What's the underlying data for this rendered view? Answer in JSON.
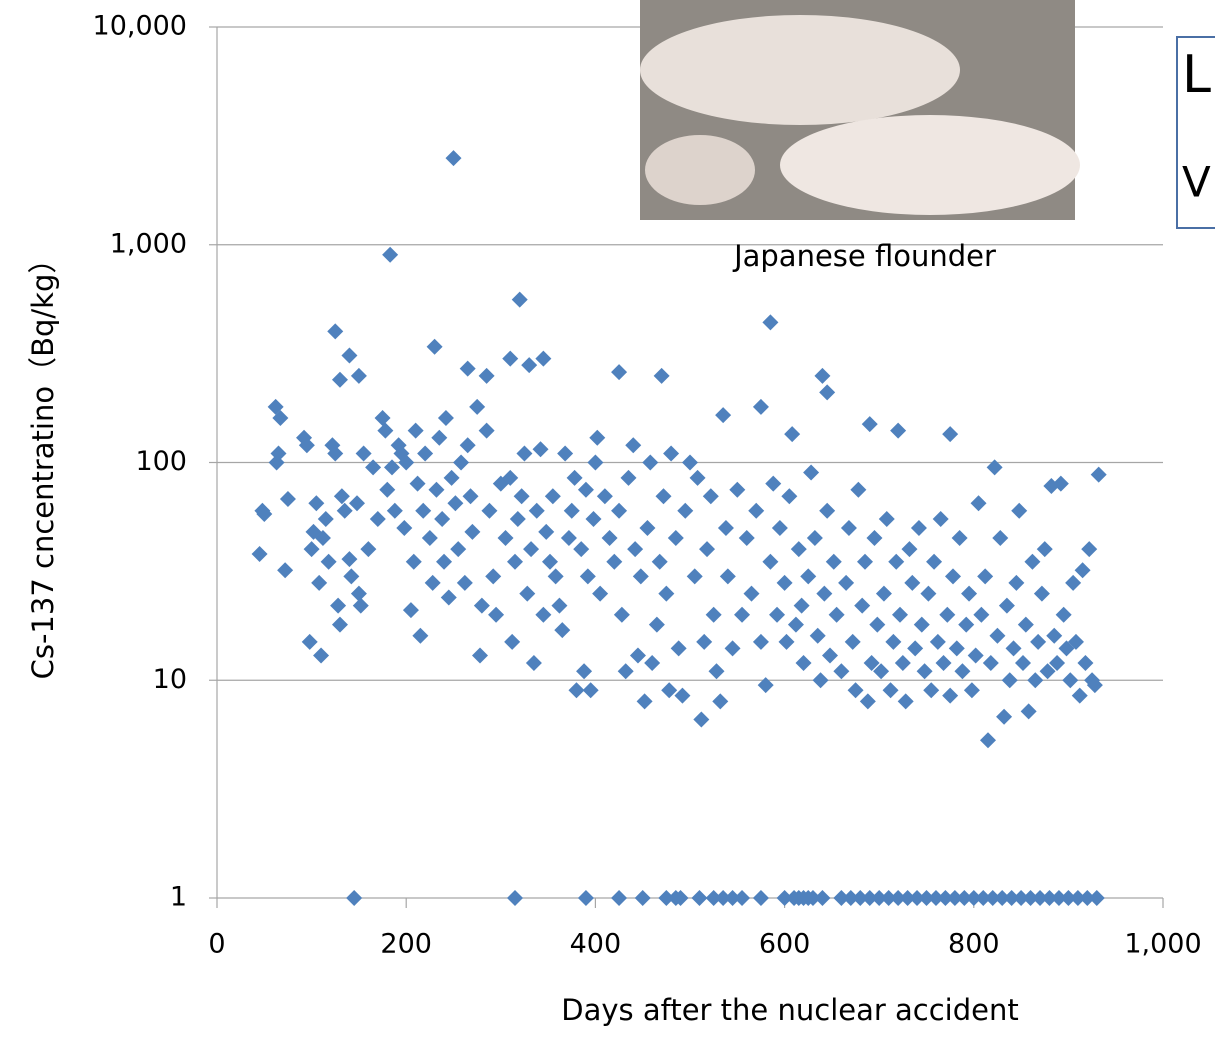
{
  "chart_data": {
    "type": "scatter",
    "xlabel": "Days after the nuclear accident",
    "ylabel": "Cs-137 cncentratino（Bq/kg）",
    "annotations": [
      "Japanese flounder",
      "L",
      "V"
    ],
    "xlim": [
      0,
      1000
    ],
    "xticks": [
      0,
      200,
      400,
      600,
      800,
      {
        "value": 1000,
        "label": "1,000"
      }
    ],
    "ylim": [
      1,
      10000
    ],
    "yscale": "log",
    "yticks": [
      1,
      10,
      100,
      {
        "value": 1000,
        "label": "1,000"
      },
      {
        "value": 10000,
        "label": "10,000"
      }
    ],
    "grid": true,
    "color": "#4f81bd",
    "x": [
      45,
      48,
      50,
      62,
      63,
      65,
      67,
      72,
      75,
      92,
      95,
      98,
      100,
      102,
      105,
      108,
      110,
      112,
      115,
      118,
      122,
      125,
      128,
      130,
      132,
      135,
      140,
      142,
      148,
      150,
      152,
      155,
      160,
      165,
      170,
      175,
      178,
      180,
      185,
      188,
      192,
      195,
      198,
      200,
      205,
      208,
      210,
      212,
      215,
      218,
      220,
      225,
      228,
      232,
      235,
      238,
      240,
      242,
      245,
      248,
      252,
      255,
      258,
      262,
      265,
      268,
      270,
      275,
      278,
      280,
      285,
      288,
      292,
      295,
      300,
      305,
      310,
      312,
      315,
      318,
      322,
      325,
      328,
      332,
      335,
      338,
      342,
      345,
      348,
      352,
      355,
      358,
      362,
      365,
      368,
      372,
      375,
      378,
      380,
      385,
      388,
      390,
      392,
      395,
      398,
      400,
      402,
      405,
      410,
      415,
      420,
      425,
      428,
      432,
      435,
      440,
      442,
      445,
      448,
      452,
      455,
      458,
      460,
      465,
      468,
      472,
      475,
      478,
      480,
      485,
      488,
      492,
      495,
      500,
      505,
      508,
      512,
      515,
      518,
      522,
      525,
      528,
      532,
      535,
      538,
      540,
      545,
      550,
      555,
      560,
      565,
      570,
      575,
      580,
      585,
      588,
      592,
      595,
      600,
      602,
      605,
      608,
      612,
      615,
      618,
      620,
      625,
      628,
      632,
      635,
      638,
      642,
      645,
      648,
      652,
      655,
      660,
      665,
      668,
      672,
      675,
      678,
      682,
      685,
      688,
      692,
      695,
      698,
      702,
      705,
      708,
      712,
      715,
      718,
      722,
      725,
      728,
      732,
      735,
      738,
      742,
      745,
      748,
      752,
      755,
      758,
      762,
      765,
      768,
      772,
      775,
      778,
      782,
      785,
      788,
      792,
      795,
      798,
      802,
      805,
      808,
      812,
      815,
      818,
      822,
      825,
      828,
      832,
      835,
      838,
      842,
      845,
      848,
      852,
      855,
      858,
      862,
      865,
      868,
      872,
      875,
      878,
      882,
      885,
      888,
      892,
      895,
      898,
      902,
      905,
      908,
      912,
      915,
      918,
      922,
      925,
      928,
      932,
      250,
      183,
      320,
      585,
      125,
      140,
      130,
      150,
      230,
      265,
      285,
      310,
      330,
      345,
      425,
      470,
      640,
      645,
      575,
      720,
      775,
      690,
      145,
      315,
      390,
      425,
      450,
      475,
      485,
      490,
      510,
      525,
      535,
      545,
      555,
      575,
      600,
      610,
      615,
      620,
      625,
      630,
      640,
      660,
      670,
      680,
      690,
      700,
      710,
      720,
      730,
      740,
      750,
      760,
      770,
      780,
      790,
      800,
      810,
      820,
      830,
      840,
      850,
      860,
      870,
      880,
      890,
      900,
      910,
      920,
      930
    ],
    "values": [
      38,
      60,
      58,
      180,
      100,
      110,
      160,
      32,
      68,
      130,
      120,
      15,
      40,
      48,
      65,
      28,
      13,
      45,
      55,
      35,
      120,
      110,
      22,
      18,
      70,
      60,
      36,
      30,
      65,
      25,
      22,
      110,
      40,
      95,
      55,
      160,
      140,
      75,
      95,
      60,
      120,
      110,
      50,
      100,
      21,
      35,
      140,
      80,
      16,
      60,
      110,
      45,
      28,
      75,
      130,
      55,
      35,
      160,
      24,
      85,
      65,
      40,
      100,
      28,
      120,
      70,
      48,
      180,
      13,
      22,
      140,
      60,
      30,
      20,
      80,
      45,
      85,
      15,
      35,
      55,
      70,
      110,
      25,
      40,
      12,
      60,
      115,
      20,
      48,
      35,
      70,
      30,
      22,
      17,
      110,
      45,
      60,
      85,
      9,
      40,
      11,
      75,
      30,
      9,
      55,
      100,
      130,
      25,
      70,
      45,
      35,
      60,
      20,
      11,
      85,
      120,
      40,
      13,
      30,
      8,
      50,
      100,
      12,
      18,
      35,
      70,
      25,
      9,
      110,
      45,
      14,
      8.5,
      60,
      100,
      30,
      85,
      6.6,
      15,
      40,
      70,
      20,
      11,
      8,
      165,
      50,
      30,
      14,
      75,
      20,
      45,
      25,
      60,
      15,
      9.5,
      35,
      80,
      20,
      50,
      28,
      15,
      70,
      135,
      18,
      40,
      22,
      12,
      30,
      90,
      45,
      16,
      10,
      25,
      60,
      13,
      35,
      20,
      11,
      28,
      50,
      15,
      9,
      75,
      22,
      35,
      8,
      12,
      45,
      18,
      11,
      25,
      55,
      9,
      15,
      35,
      20,
      12,
      8,
      40,
      28,
      14,
      50,
      18,
      11,
      25,
      9,
      35,
      15,
      55,
      12,
      20,
      8.5,
      30,
      14,
      45,
      11,
      18,
      25,
      9,
      13,
      65,
      20,
      30,
      5.3,
      12,
      95,
      16,
      45,
      6.8,
      22,
      10,
      14,
      28,
      60,
      12,
      18,
      7.2,
      35,
      10,
      15,
      25,
      40,
      11,
      78,
      16,
      12,
      80,
      20,
      14,
      10,
      28,
      15,
      8.5,
      32,
      12,
      40,
      10,
      9.5,
      88,
      2500,
      900,
      560,
      440,
      400,
      310,
      240,
      250,
      340,
      270,
      250,
      300,
      280,
      300,
      260,
      250,
      250,
      210,
      180,
      140,
      135,
      150,
      1,
      1,
      1,
      1,
      1,
      1,
      1,
      1,
      1,
      1,
      1,
      1,
      1,
      1,
      1,
      1,
      1,
      1,
      1,
      1,
      1,
      1,
      1,
      1,
      1,
      1,
      1,
      1,
      1,
      1,
      1,
      1,
      1,
      1,
      1,
      1,
      1,
      1,
      1,
      1,
      1,
      1,
      1,
      1,
      1,
      1,
      1,
      1,
      1
    ]
  }
}
